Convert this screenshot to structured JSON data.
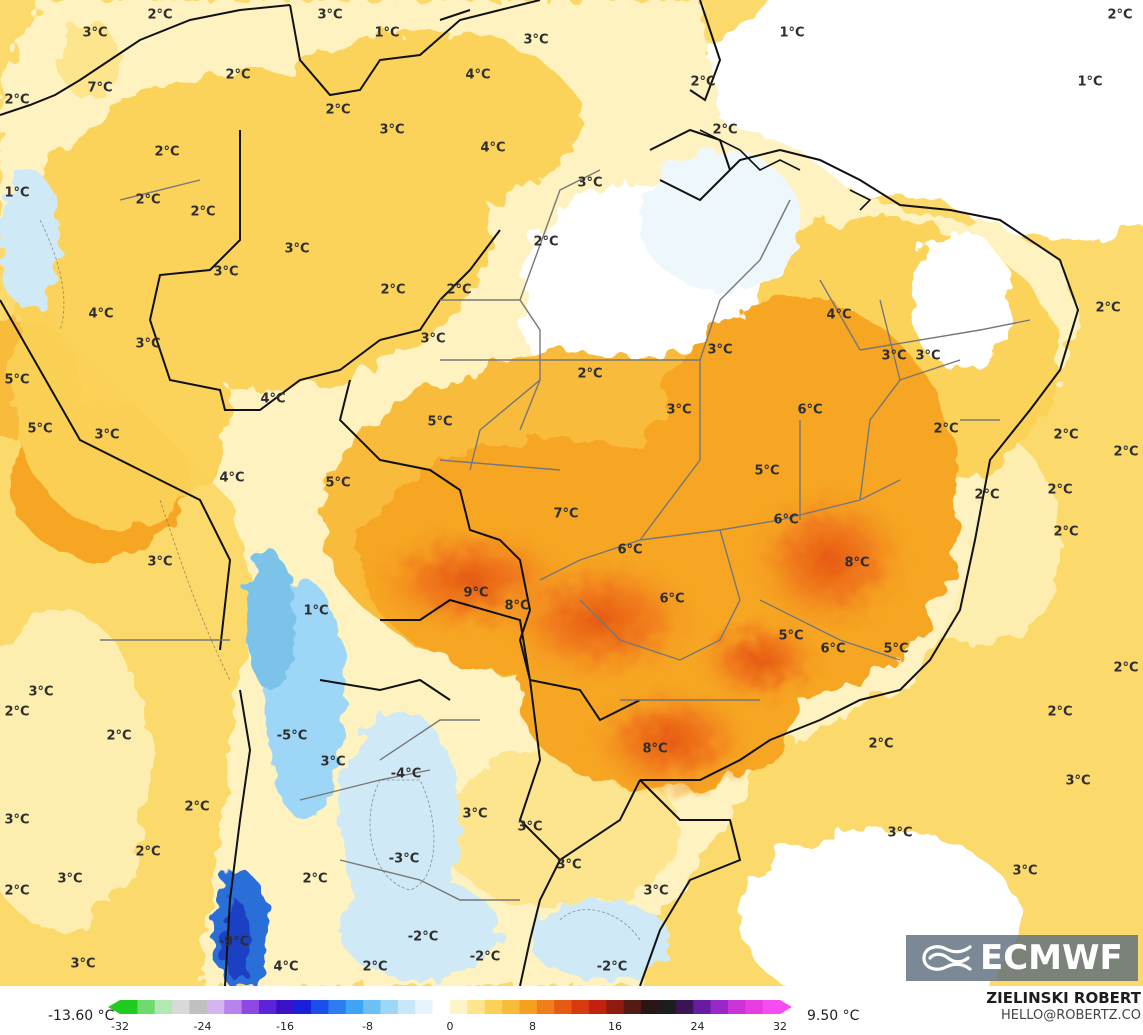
{
  "colors": {
    "ocean_warm": "#fbd96a",
    "ocean_pale": "#fdeeb0",
    "land_light": "#fef6cf",
    "land_yellow": "#fbd257",
    "warm_orange": "#f6a623",
    "hot_orange": "#f17e1c",
    "hot_red": "#e65a14",
    "cold_light": "#cfe9f6",
    "cold_mid": "#7cc3ea",
    "cold_deep": "#2a6ed8",
    "cold_deeper": "#1d3fc4",
    "border": "#111111",
    "state_line": "#777777"
  },
  "map": {
    "labels": [
      "2°C",
      "3°C",
      "1°C",
      "3°C",
      "1°C",
      "3°C",
      "4°C",
      "7°C",
      "2°C",
      "2°C",
      "2°C",
      "1°C",
      "2°C",
      "3°C",
      "4°C",
      "2°C",
      "2°C",
      "1°C",
      "2°C",
      "2°C",
      "3°C",
      "2°C",
      "3°C",
      "3°C",
      "2°C",
      "2°C",
      "3°C",
      "4°C",
      "3°C",
      "3°C",
      "3°C",
      "3°C",
      "4°C",
      "2°C",
      "5°C",
      "5°C",
      "3°C",
      "4°C",
      "2°C",
      "5°C",
      "6°C",
      "3°C",
      "2°C",
      "2°C",
      "5°C",
      "7°C",
      "6°C",
      "5°C",
      "6°C",
      "2°C",
      "2°C",
      "9°C",
      "8°C",
      "6°C",
      "8°C",
      "2°C",
      "2°C",
      "3°C",
      "1°C",
      "5°C",
      "6°C",
      "5°C",
      "3°C",
      "2°C",
      "2°C",
      "2°C",
      "-5°C",
      "2°C",
      "3°C",
      "2°C",
      "-4°C",
      "8°C",
      "3°C",
      "3°C",
      "3°C",
      "2°C",
      "3°C",
      "3°C",
      "3°C",
      "3°C",
      "2°C",
      "3°C",
      "2°C",
      "-3°C",
      "3°C",
      "2°C",
      "-2°C",
      "-2°C",
      "-2°C",
      "3°C",
      "4°C",
      "2°C",
      "-9°C",
      "2°C",
      "4°C"
    ]
  },
  "logo": {
    "text": "ECMWF"
  },
  "legend": {
    "min_label": "-13.60 °C",
    "max_label": "9.50 °C",
    "ticks": [
      "-32",
      "-24",
      "-16",
      "-8",
      "0",
      "8",
      "16",
      "24",
      "32"
    ],
    "colors": [
      "#1ecb1e",
      "#6fdb6f",
      "#b2e9b2",
      "#d9d9d9",
      "#c0c0c0",
      "#d3b6f0",
      "#b784ee",
      "#9048e3",
      "#5b24d9",
      "#3a10c8",
      "#1a1fd8",
      "#1a4ee8",
      "#2c7ef0",
      "#3fa4f4",
      "#6cc0f3",
      "#9dd6f7",
      "#c8e8fa",
      "#e6f4fc",
      "#ffffff",
      "#fff4c8",
      "#fde58e",
      "#fbd257",
      "#f9bb3a",
      "#f6a020",
      "#f17e1c",
      "#e65a14",
      "#d83a10",
      "#c0220f",
      "#8e1a12",
      "#561a14",
      "#2a1614",
      "#1d1d1d",
      "#3a1454",
      "#6a1ca0",
      "#9a28c8",
      "#c834d8",
      "#e63ce0",
      "#f64cf0"
    ]
  },
  "credit": {
    "name": "ZIELINSKI ROBERT",
    "email": "HELLO@ROBERTZ.CO"
  }
}
